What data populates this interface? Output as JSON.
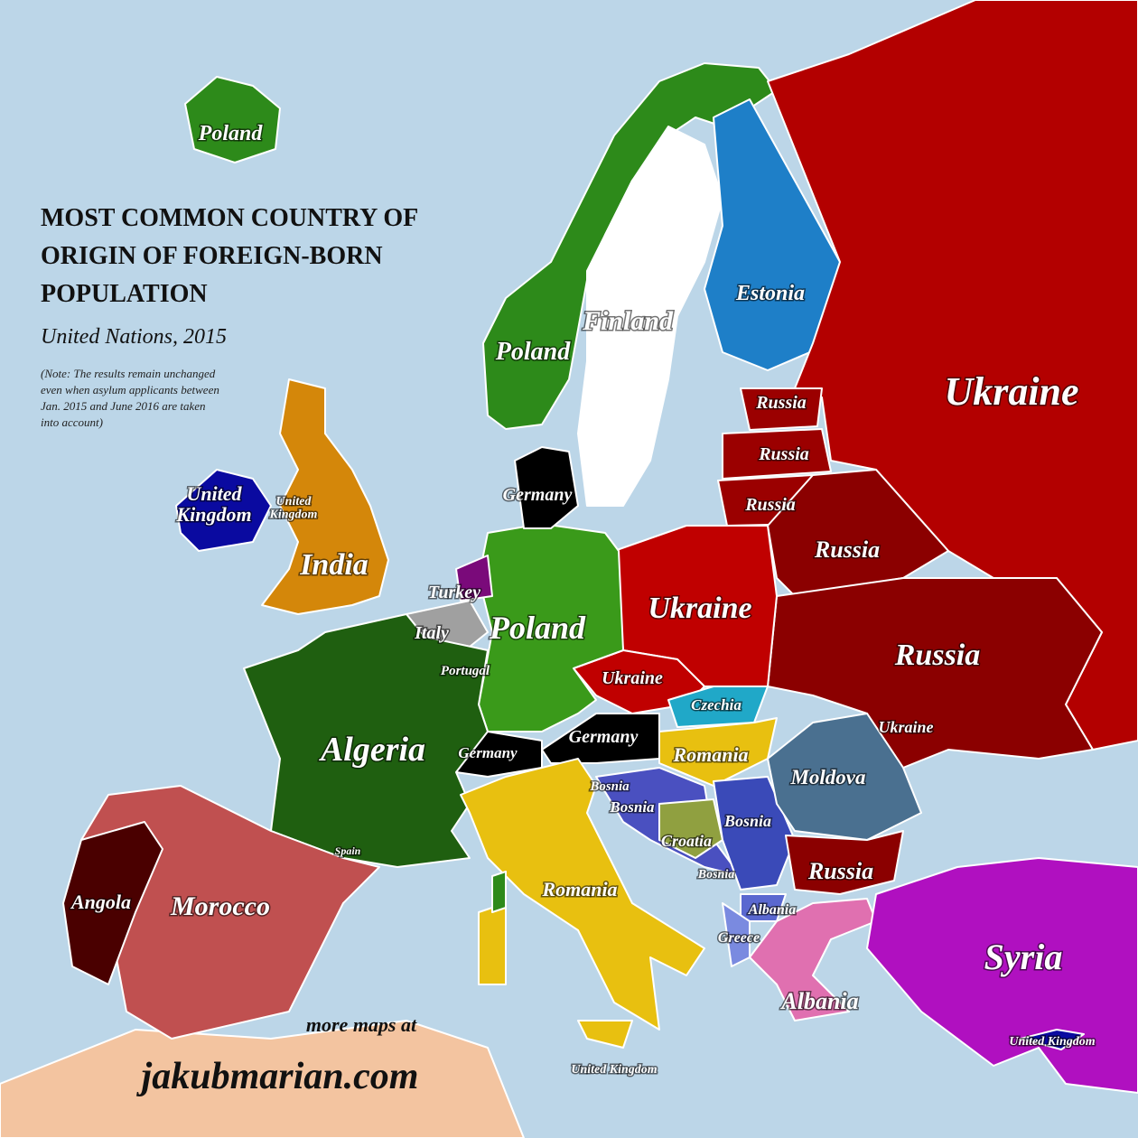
{
  "title": {
    "lines": [
      "MOST COMMON COUNTRY OF",
      "ORIGIN OF FOREIGN-BORN",
      "POPULATION"
    ]
  },
  "subtitle": "United Nations, 2015",
  "note": {
    "lines": [
      "(Note: The results remain unchanged",
      "even when asylum applicants between",
      "Jan. 2015 and June 2016 are taken",
      "into account)"
    ]
  },
  "labels": [
    "Poland",
    "Poland",
    "Finland",
    "Estonia",
    "Ukraine",
    "Russia",
    "Russia",
    "Russia",
    "Russia",
    "Ukraine",
    "Russia",
    [
      "United",
      "Kingdom"
    ],
    [
      "United",
      "Kingdom"
    ],
    "India",
    "Germany",
    "Turkey",
    "Italy",
    "Portugal",
    "Poland",
    "Ukraine",
    "Czechia",
    "Germany",
    "Germany",
    "Romania",
    "Ukraine",
    "Moldova",
    "Algeria",
    "Bosnia",
    "Bosnia",
    "Bosnia",
    "Croatia",
    "Spain",
    "Bosnia",
    "Russia",
    "Romania",
    "Albania",
    "Greece",
    "Angola",
    "Morocco",
    "Syria",
    "Albania",
    "United Kingdom",
    "United Kingdom"
  ],
  "footer": {
    "line1": "more maps at",
    "line2": "jakubmarian.com"
  }
}
